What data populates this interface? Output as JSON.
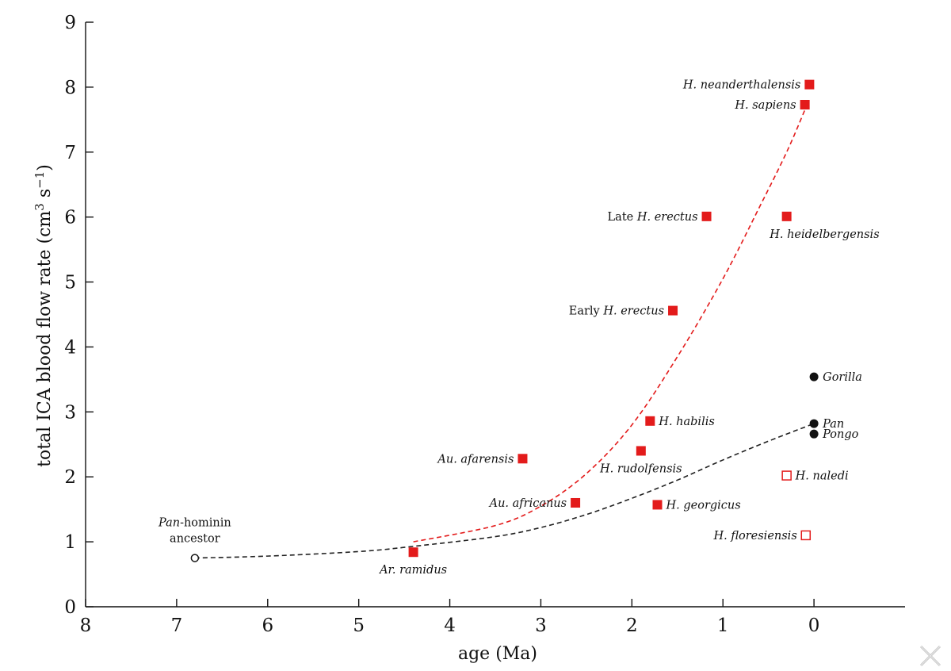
{
  "chart_data": {
    "type": "scatter",
    "xlabel": "age (Ma)",
    "ylabel_parts": [
      "total ICA blood flow rate (cm",
      "3",
      " s",
      "−1",
      ")"
    ],
    "xlim": [
      8,
      -1
    ],
    "xaxis_reversed": true,
    "ylim": [
      0,
      9
    ],
    "x_ticks": [
      8,
      7,
      6,
      5,
      4,
      3,
      2,
      1,
      0
    ],
    "y_ticks": [
      0,
      1,
      2,
      3,
      4,
      5,
      6,
      7,
      8,
      9
    ],
    "grid": false,
    "colors": {
      "hominin": "#e31b1b",
      "ape": "#111111",
      "trend_hominin": "#e31b1b",
      "trend_ape": "#222222"
    },
    "points": [
      {
        "id": "pan-hominin",
        "label_parts": [
          {
            "t": "Pan",
            "i": true
          },
          {
            "t": "-hominin",
            "i": false
          }
        ],
        "label_line2": "ancestor",
        "x": 6.8,
        "y": 0.75,
        "marker": "circle-open",
        "label_pos": "above-left"
      },
      {
        "id": "ar-ramidus",
        "label_parts": [
          {
            "t": "Ar. ramidus",
            "i": true
          }
        ],
        "x": 4.4,
        "y": 0.84,
        "marker": "square-filled",
        "label_pos": "below"
      },
      {
        "id": "au-afarensis",
        "label_parts": [
          {
            "t": "Au. afarensis",
            "i": true
          }
        ],
        "x": 3.2,
        "y": 2.28,
        "marker": "square-filled",
        "label_pos": "left"
      },
      {
        "id": "au-africanus",
        "label_parts": [
          {
            "t": "Au. africanus",
            "i": true
          }
        ],
        "x": 2.62,
        "y": 1.6,
        "marker": "square-filled",
        "label_pos": "left"
      },
      {
        "id": "h-rudolfensis",
        "label_parts": [
          {
            "t": "H. rudolfensis",
            "i": true
          }
        ],
        "x": 1.9,
        "y": 2.4,
        "marker": "square-filled",
        "label_pos": "below"
      },
      {
        "id": "h-habilis",
        "label_parts": [
          {
            "t": "H. habilis",
            "i": true
          }
        ],
        "x": 1.8,
        "y": 2.86,
        "marker": "square-filled",
        "label_pos": "right"
      },
      {
        "id": "h-georgicus",
        "label_parts": [
          {
            "t": "H. georgicus",
            "i": true
          }
        ],
        "x": 1.72,
        "y": 1.57,
        "marker": "square-filled",
        "label_pos": "right"
      },
      {
        "id": "early-h-erectus",
        "label_parts": [
          {
            "t": "Early ",
            "i": false
          },
          {
            "t": "H. erectus",
            "i": true
          }
        ],
        "x": 1.55,
        "y": 4.56,
        "marker": "square-filled",
        "label_pos": "left"
      },
      {
        "id": "late-h-erectus",
        "label_parts": [
          {
            "t": "Late ",
            "i": false
          },
          {
            "t": "H. erectus",
            "i": true
          }
        ],
        "x": 1.18,
        "y": 6.01,
        "marker": "square-filled",
        "label_pos": "left"
      },
      {
        "id": "h-heidelbergensis",
        "label_parts": [
          {
            "t": "H. heidelbergensis",
            "i": true
          }
        ],
        "x": 0.3,
        "y": 6.01,
        "marker": "square-filled",
        "label_pos": "below-right"
      },
      {
        "id": "h-naledi",
        "label_parts": [
          {
            "t": "H. naledi",
            "i": true
          }
        ],
        "x": 0.3,
        "y": 2.02,
        "marker": "square-open",
        "label_pos": "right"
      },
      {
        "id": "h-floresiensis",
        "label_parts": [
          {
            "t": "H. floresiensis",
            "i": true
          }
        ],
        "x": 0.09,
        "y": 1.1,
        "marker": "square-open",
        "label_pos": "left"
      },
      {
        "id": "h-sapiens",
        "label_parts": [
          {
            "t": "H. sapiens",
            "i": true
          }
        ],
        "x": 0.1,
        "y": 7.73,
        "marker": "square-filled",
        "label_pos": "left"
      },
      {
        "id": "h-neanderthalensis",
        "label_parts": [
          {
            "t": "H. neanderthalensis",
            "i": true
          }
        ],
        "x": 0.05,
        "y": 8.04,
        "marker": "square-filled",
        "label_pos": "left"
      },
      {
        "id": "gorilla",
        "label_parts": [
          {
            "t": "Gorilla",
            "i": true
          }
        ],
        "x": 0.0,
        "y": 3.54,
        "marker": "circle-filled",
        "label_pos": "right"
      },
      {
        "id": "pan",
        "label_parts": [
          {
            "t": "Pan",
            "i": true
          }
        ],
        "x": 0.0,
        "y": 2.82,
        "marker": "circle-filled",
        "label_pos": "right"
      },
      {
        "id": "pongo",
        "label_parts": [
          {
            "t": "Pongo",
            "i": true
          }
        ],
        "x": 0.0,
        "y": 2.66,
        "marker": "circle-filled",
        "label_pos": "right"
      }
    ],
    "curves": [
      {
        "id": "trend-hominin",
        "style": "dashed",
        "color": "#e31b1b",
        "points": [
          [
            4.4,
            1.0
          ],
          [
            3.5,
            1.25
          ],
          [
            3.0,
            1.55
          ],
          [
            2.5,
            2.05
          ],
          [
            2.0,
            2.8
          ],
          [
            1.5,
            3.85
          ],
          [
            1.0,
            5.05
          ],
          [
            0.6,
            6.15
          ],
          [
            0.3,
            7.0
          ],
          [
            0.1,
            7.65
          ]
        ]
      },
      {
        "id": "trend-ape",
        "style": "dashed",
        "color": "#222222",
        "points": [
          [
            6.8,
            0.75
          ],
          [
            6.0,
            0.78
          ],
          [
            5.0,
            0.85
          ],
          [
            4.4,
            0.93
          ],
          [
            3.5,
            1.08
          ],
          [
            3.0,
            1.22
          ],
          [
            2.5,
            1.42
          ],
          [
            2.0,
            1.67
          ],
          [
            1.5,
            1.95
          ],
          [
            1.0,
            2.26
          ],
          [
            0.5,
            2.55
          ],
          [
            0.0,
            2.82
          ]
        ]
      }
    ]
  }
}
